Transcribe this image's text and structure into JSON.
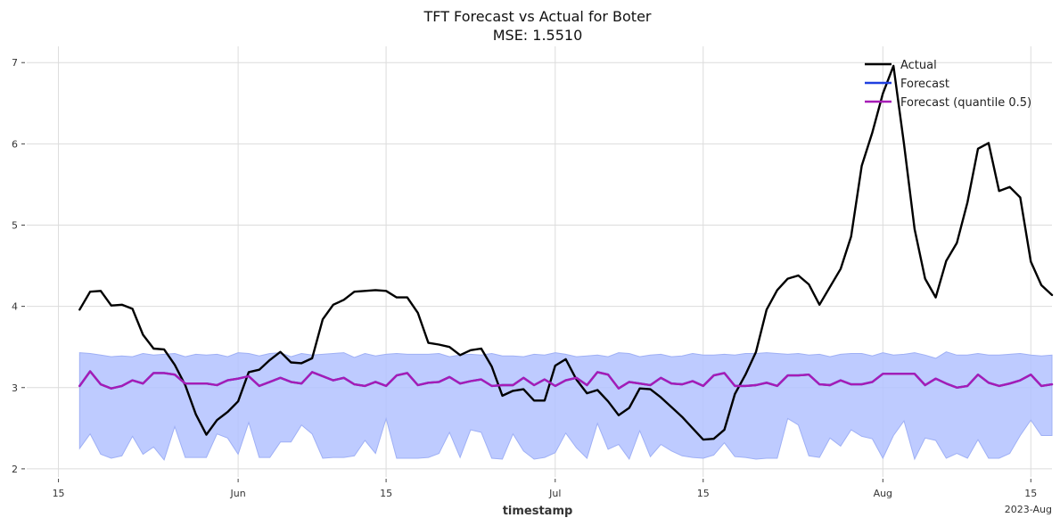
{
  "chart_data": {
    "type": "line",
    "title": "TFT Forecast vs Actual for Boter",
    "subtitle": "MSE: 1.5510",
    "xlabel": "timestamp",
    "ylabel": "",
    "x_start": "2023-05-17",
    "x_end": "2023-08-15",
    "x_range": [
      "2023-05-12",
      "2023-08-17"
    ],
    "ylim": [
      1.9,
      7.2
    ],
    "yticks": [
      2,
      3,
      4,
      5,
      6,
      7
    ],
    "xticks": [
      {
        "date": "2023-05-15",
        "label": "15"
      },
      {
        "date": "2023-06-01",
        "label": "Jun"
      },
      {
        "date": "2023-06-15",
        "label": "15"
      },
      {
        "date": "2023-07-01",
        "label": "Jul"
      },
      {
        "date": "2023-07-15",
        "label": "15"
      },
      {
        "date": "2023-08-01",
        "label": "Aug"
      },
      {
        "date": "2023-08-15",
        "label": "15"
      }
    ],
    "x_offset_label": "2023-Aug",
    "grid": true,
    "legend_position": "top-right",
    "colors": {
      "actual": "#000000",
      "forecast": "#1f3fe0",
      "quantile": "#a61cb5",
      "band": "#b3c2ff"
    },
    "series": [
      {
        "name": "Actual",
        "values": [
          3.96,
          4.18,
          4.19,
          4.01,
          4.02,
          3.97,
          3.65,
          3.48,
          3.47,
          3.28,
          3.03,
          2.67,
          2.42,
          2.6,
          2.7,
          2.83,
          3.19,
          3.22,
          3.34,
          3.44,
          3.31,
          3.3,
          3.36,
          3.84,
          4.02,
          4.08,
          4.18,
          4.19,
          4.2,
          4.19,
          4.11,
          4.11,
          3.92,
          3.55,
          3.53,
          3.5,
          3.4,
          3.46,
          3.48,
          3.26,
          2.9,
          2.96,
          2.98,
          2.84,
          2.84,
          3.27,
          3.35,
          3.1,
          2.93,
          2.97,
          2.83,
          2.66,
          2.75,
          2.99,
          2.98,
          2.88,
          2.76,
          2.64,
          2.5,
          2.36,
          2.37,
          2.48,
          2.92,
          3.16,
          3.44,
          3.96,
          4.2,
          4.34,
          4.38,
          4.27,
          4.02,
          4.24,
          4.46,
          4.86,
          5.73,
          6.14,
          6.62,
          6.96,
          6.0,
          4.95,
          4.34,
          4.11,
          4.56,
          4.78,
          5.28,
          5.94,
          6.01,
          5.42,
          5.47,
          5.34,
          4.55,
          4.26,
          4.14
        ]
      },
      {
        "name": "Forecast",
        "values": [
          3.02,
          3.2,
          3.04,
          2.99,
          3.02,
          3.09,
          3.05,
          3.18,
          3.18,
          3.16,
          3.05,
          3.05,
          3.05,
          3.03,
          3.09,
          3.11,
          3.14,
          3.02,
          3.07,
          3.12,
          3.07,
          3.05,
          3.19,
          3.14,
          3.09,
          3.12,
          3.04,
          3.02,
          3.07,
          3.02,
          3.15,
          3.18,
          3.03,
          3.06,
          3.07,
          3.13,
          3.05,
          3.08,
          3.1,
          3.02,
          3.03,
          3.03,
          3.12,
          3.03,
          3.1,
          3.02,
          3.09,
          3.12,
          3.03,
          3.19,
          3.16,
          2.99,
          3.07,
          3.05,
          3.03,
          3.12,
          3.05,
          3.04,
          3.08,
          3.02,
          3.15,
          3.18,
          3.02,
          3.02,
          3.03,
          3.06,
          3.02,
          3.15,
          3.15,
          3.16,
          3.04,
          3.03,
          3.09,
          3.04,
          3.04,
          3.07,
          3.17,
          3.17,
          3.17,
          3.17,
          3.03,
          3.11,
          3.05,
          3.0,
          3.02,
          3.16,
          3.06,
          3.02,
          3.05,
          3.09,
          3.16,
          3.02,
          3.04
        ]
      },
      {
        "name": "Forecast (quantile 0.5)",
        "values": [
          3.02,
          3.2,
          3.04,
          2.99,
          3.02,
          3.09,
          3.05,
          3.18,
          3.18,
          3.16,
          3.05,
          3.05,
          3.05,
          3.03,
          3.09,
          3.11,
          3.14,
          3.02,
          3.07,
          3.12,
          3.07,
          3.05,
          3.19,
          3.14,
          3.09,
          3.12,
          3.04,
          3.02,
          3.07,
          3.02,
          3.15,
          3.18,
          3.03,
          3.06,
          3.07,
          3.13,
          3.05,
          3.08,
          3.1,
          3.02,
          3.03,
          3.03,
          3.12,
          3.03,
          3.1,
          3.02,
          3.09,
          3.12,
          3.03,
          3.19,
          3.16,
          2.99,
          3.07,
          3.05,
          3.03,
          3.12,
          3.05,
          3.04,
          3.08,
          3.02,
          3.15,
          3.18,
          3.02,
          3.02,
          3.03,
          3.06,
          3.02,
          3.15,
          3.15,
          3.16,
          3.04,
          3.03,
          3.09,
          3.04,
          3.04,
          3.07,
          3.17,
          3.17,
          3.17,
          3.17,
          3.03,
          3.11,
          3.05,
          3.0,
          3.02,
          3.16,
          3.06,
          3.02,
          3.05,
          3.09,
          3.16,
          3.02,
          3.04
        ]
      }
    ],
    "band": {
      "upper": [
        3.43,
        3.42,
        3.4,
        3.38,
        3.39,
        3.38,
        3.42,
        3.4,
        3.41,
        3.42,
        3.38,
        3.41,
        3.4,
        3.41,
        3.38,
        3.43,
        3.42,
        3.39,
        3.42,
        3.43,
        3.38,
        3.42,
        3.4,
        3.41,
        3.42,
        3.43,
        3.37,
        3.42,
        3.39,
        3.41,
        3.42,
        3.41,
        3.41,
        3.41,
        3.42,
        3.38,
        3.4,
        3.41,
        3.4,
        3.42,
        3.39,
        3.39,
        3.38,
        3.41,
        3.4,
        3.43,
        3.41,
        3.38,
        3.39,
        3.4,
        3.38,
        3.43,
        3.42,
        3.38,
        3.4,
        3.41,
        3.38,
        3.39,
        3.42,
        3.4,
        3.4,
        3.41,
        3.4,
        3.42,
        3.42,
        3.43,
        3.42,
        3.41,
        3.42,
        3.4,
        3.41,
        3.38,
        3.41,
        3.42,
        3.42,
        3.39,
        3.43,
        3.4,
        3.41,
        3.43,
        3.4,
        3.36,
        3.44,
        3.4,
        3.4,
        3.42,
        3.4,
        3.4,
        3.41,
        3.42,
        3.4,
        3.39,
        3.4
      ],
      "lower": [
        2.25,
        2.43,
        2.18,
        2.13,
        2.16,
        2.4,
        2.18,
        2.27,
        2.11,
        2.52,
        2.14,
        2.14,
        2.14,
        2.43,
        2.38,
        2.18,
        2.57,
        2.14,
        2.14,
        2.33,
        2.33,
        2.54,
        2.43,
        2.13,
        2.14,
        2.14,
        2.16,
        2.35,
        2.19,
        2.62,
        2.13,
        2.13,
        2.13,
        2.14,
        2.19,
        2.45,
        2.14,
        2.48,
        2.45,
        2.13,
        2.12,
        2.43,
        2.22,
        2.12,
        2.14,
        2.2,
        2.44,
        2.26,
        2.13,
        2.56,
        2.24,
        2.3,
        2.12,
        2.47,
        2.15,
        2.3,
        2.22,
        2.16,
        2.14,
        2.13,
        2.17,
        2.32,
        2.15,
        2.14,
        2.12,
        2.13,
        2.13,
        2.62,
        2.54,
        2.16,
        2.14,
        2.38,
        2.28,
        2.48,
        2.4,
        2.37,
        2.13,
        2.41,
        2.59,
        2.12,
        2.38,
        2.35,
        2.13,
        2.19,
        2.13,
        2.36,
        2.13,
        2.13,
        2.19,
        2.41,
        2.6,
        2.41,
        2.41
      ]
    }
  }
}
